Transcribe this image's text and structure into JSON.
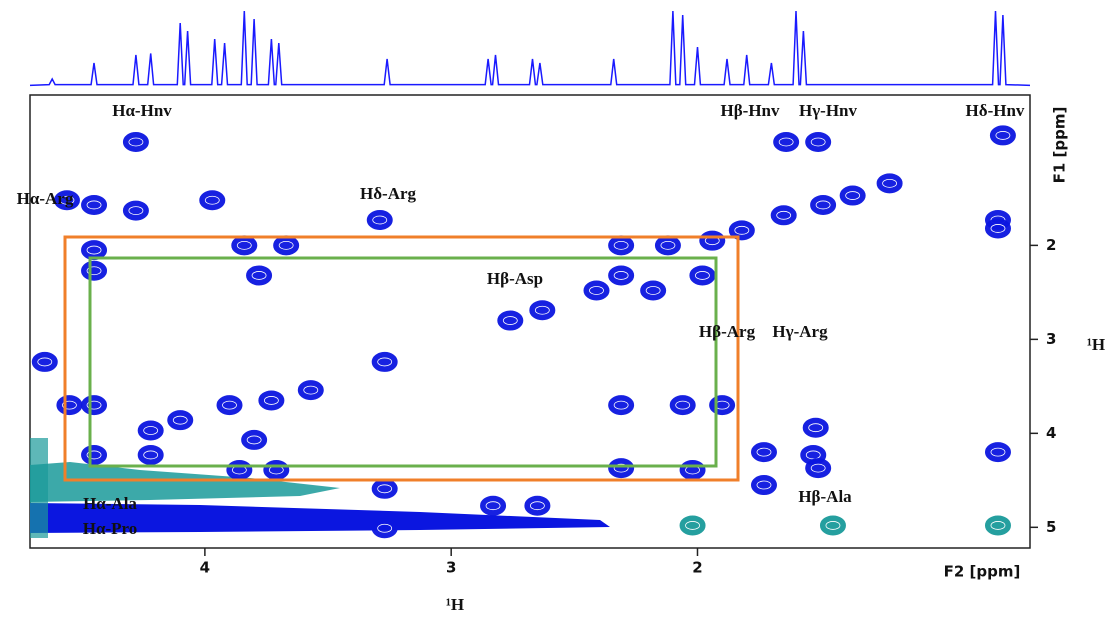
{
  "chart_data": {
    "type": "contour",
    "x_label": "¹H",
    "y_label": "¹H",
    "x_unit_label": "F2 [ppm]",
    "y_unit_label": "F1 [ppm]",
    "xlim": [
      4.71,
      0.65
    ],
    "ylim": [
      0.4,
      5.22
    ],
    "xticks": [
      4,
      3,
      2
    ],
    "yticks": [
      2,
      3,
      4,
      5
    ],
    "annotations": [
      "Hα-Hnv",
      "Hβ-Hnv",
      "Hγ-Hnv",
      "Hδ-Hnv",
      "Hα-Arg",
      "Hδ-Arg",
      "Hβ-Asp",
      "Hβ-Arg",
      "Hγ-Arg",
      "Hα-Ala",
      "Hα-Pro",
      "Hβ-Ala"
    ],
    "series": [
      {
        "color": "#0b16e0",
        "x": [
          4.28,
          0.76,
          1.64,
          1.51,
          1.22,
          1.37,
          1.49,
          1.65,
          1.82,
          1.94,
          4.56,
          4.45,
          4.28,
          3.97,
          3.29,
          0.78,
          0.78,
          4.45,
          3.84,
          3.67,
          3.78,
          2.31,
          2.12,
          2.31,
          1.98,
          2.41,
          2.18,
          4.45,
          2.76,
          2.63,
          3.27,
          4.65,
          4.55,
          4.45,
          3.9,
          3.73,
          4.1,
          4.22,
          3.8,
          3.57,
          2.31,
          2.06,
          1.9,
          1.52,
          0.78,
          1.73,
          1.53,
          4.45,
          4.22,
          3.86,
          3.71,
          3.27,
          2.31,
          2.02,
          1.73,
          1.51,
          2.83,
          2.65,
          3.27
        ],
        "values": [
          0.9,
          0.83,
          0.9,
          0.9,
          1.34,
          1.47,
          1.57,
          1.68,
          1.84,
          1.95,
          1.52,
          1.57,
          1.63,
          1.52,
          1.73,
          1.73,
          1.82,
          2.05,
          2.0,
          2.0,
          2.32,
          2.0,
          2.0,
          2.32,
          2.32,
          2.48,
          2.48,
          2.27,
          2.8,
          2.69,
          3.24,
          3.24,
          3.7,
          3.7,
          3.7,
          3.65,
          3.86,
          3.97,
          4.07,
          3.54,
          3.7,
          3.7,
          3.7,
          3.94,
          4.2,
          4.2,
          4.23,
          4.23,
          4.23,
          4.39,
          4.39,
          4.59,
          4.37,
          4.39,
          4.55,
          4.37,
          4.77,
          4.77,
          5.01
        ]
      },
      {
        "color": "#1a9a9a",
        "x": [
          0.78,
          1.45,
          2.02
        ],
        "values": [
          4.98,
          4.98,
          4.98
        ]
      }
    ],
    "projection": {
      "color": "#1a1aff",
      "x": [
        4.71,
        4.632,
        4.62,
        4.608,
        4.462,
        4.45,
        4.438,
        4.292,
        4.28,
        4.268,
        4.232,
        4.22,
        4.208,
        4.112,
        4.1,
        4.088,
        4.082,
        4.07,
        4.058,
        3.972,
        3.96,
        3.948,
        3.932,
        3.92,
        3.908,
        3.852,
        3.84,
        3.828,
        3.812,
        3.8,
        3.788,
        3.742,
        3.73,
        3.718,
        3.712,
        3.7,
        3.688,
        3.272,
        3.26,
        3.248,
        2.862,
        2.85,
        2.838,
        2.832,
        2.82,
        2.808,
        2.682,
        2.67,
        2.658,
        2.652,
        2.64,
        2.628,
        2.352,
        2.34,
        2.328,
        2.112,
        2.1,
        2.088,
        2.072,
        2.06,
        2.048,
        2.012,
        2.0,
        1.988,
        1.892,
        1.88,
        1.868,
        1.812,
        1.8,
        1.788,
        1.712,
        1.7,
        1.688,
        1.612,
        1.6,
        1.588,
        1.582,
        1.57,
        1.558,
        0.802,
        0.79,
        0.778,
        0.772,
        0.76,
        0.748,
        0.65
      ],
      "values": [
        2,
        3,
        10,
        3,
        3,
        30,
        3,
        3,
        40,
        3,
        3,
        42,
        3,
        3,
        80,
        3,
        3,
        70,
        3,
        3,
        60,
        3,
        3,
        55,
        3,
        3,
        95,
        3,
        3,
        85,
        3,
        3,
        60,
        3,
        3,
        55,
        3,
        3,
        35,
        3,
        3,
        35,
        3,
        3,
        40,
        3,
        3,
        35,
        3,
        3,
        30,
        3,
        3,
        35,
        3,
        3,
        95,
        3,
        3,
        90,
        3,
        3,
        50,
        3,
        3,
        35,
        3,
        3,
        40,
        3,
        3,
        30,
        3,
        3,
        95,
        3,
        3,
        70,
        3,
        3,
        95,
        3,
        3,
        90,
        3,
        2
      ]
    }
  }
}
